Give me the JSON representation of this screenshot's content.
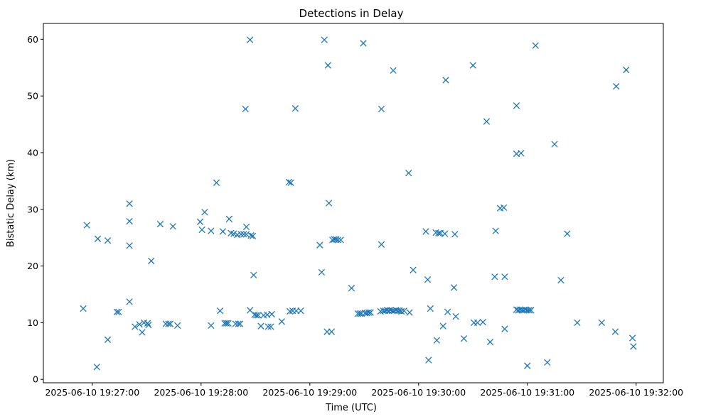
{
  "chart_data": {
    "type": "scatter",
    "title": "Detections in Delay",
    "xlabel": "Time (UTC)",
    "ylabel": "Bistatic Delay (km)",
    "marker": "x",
    "color": "#1f77b4",
    "x_unit": "seconds since 2025-06-10 19:27:00",
    "xlim": [
      -27,
      315
    ],
    "ylim": [
      -0.6,
      62.8
    ],
    "x_ticks": [
      {
        "value": 0,
        "label": "2025-06-10 19:27:00"
      },
      {
        "value": 60,
        "label": "2025-06-10 19:28:00"
      },
      {
        "value": 120,
        "label": "2025-06-10 19:29:00"
      },
      {
        "value": 180,
        "label": "2025-06-10 19:30:00"
      },
      {
        "value": 240,
        "label": "2025-06-10 19:31:00"
      },
      {
        "value": 300,
        "label": "2025-06-10 19:32:00"
      }
    ],
    "y_ticks": [
      {
        "value": 0,
        "label": "0"
      },
      {
        "value": 10,
        "label": "10"
      },
      {
        "value": 20,
        "label": "20"
      },
      {
        "value": 30,
        "label": "30"
      },
      {
        "value": 40,
        "label": "40"
      },
      {
        "value": 50,
        "label": "50"
      },
      {
        "value": 60,
        "label": "60"
      }
    ],
    "points": [
      {
        "x": -5,
        "y": 12.5
      },
      {
        "x": -3,
        "y": 27.2
      },
      {
        "x": 2.5,
        "y": 2.2
      },
      {
        "x": 3,
        "y": 24.8
      },
      {
        "x": 8.5,
        "y": 24.5
      },
      {
        "x": 8.5,
        "y": 7.0
      },
      {
        "x": 13.5,
        "y": 11.9
      },
      {
        "x": 14.5,
        "y": 11.9
      },
      {
        "x": 20.5,
        "y": 31.0
      },
      {
        "x": 20.5,
        "y": 27.9
      },
      {
        "x": 20.5,
        "y": 23.6
      },
      {
        "x": 20.5,
        "y": 13.7
      },
      {
        "x": 23.5,
        "y": 9.3
      },
      {
        "x": 26,
        "y": 9.7
      },
      {
        "x": 27.5,
        "y": 8.3
      },
      {
        "x": 28.5,
        "y": 10.0
      },
      {
        "x": 30.5,
        "y": 9.9
      },
      {
        "x": 31,
        "y": 9.6
      },
      {
        "x": 32.5,
        "y": 20.9
      },
      {
        "x": 37.5,
        "y": 27.4
      },
      {
        "x": 40.5,
        "y": 9.8
      },
      {
        "x": 42,
        "y": 9.8
      },
      {
        "x": 43,
        "y": 9.8
      },
      {
        "x": 44.5,
        "y": 27.0
      },
      {
        "x": 47,
        "y": 9.5
      },
      {
        "x": 59.5,
        "y": 27.8
      },
      {
        "x": 60.5,
        "y": 26.4
      },
      {
        "x": 62,
        "y": 29.5
      },
      {
        "x": 65.5,
        "y": 26.2
      },
      {
        "x": 65.5,
        "y": 9.5
      },
      {
        "x": 68.5,
        "y": 34.7
      },
      {
        "x": 70.5,
        "y": 12.1
      },
      {
        "x": 72,
        "y": 26.1
      },
      {
        "x": 73,
        "y": 9.9
      },
      {
        "x": 74,
        "y": 9.9
      },
      {
        "x": 75,
        "y": 9.9
      },
      {
        "x": 75.5,
        "y": 28.3
      },
      {
        "x": 76.5,
        "y": 25.8
      },
      {
        "x": 78,
        "y": 25.7
      },
      {
        "x": 79,
        "y": 9.8
      },
      {
        "x": 80,
        "y": 25.5
      },
      {
        "x": 80.5,
        "y": 9.8
      },
      {
        "x": 81.5,
        "y": 9.8
      },
      {
        "x": 82,
        "y": 25.6
      },
      {
        "x": 83.5,
        "y": 25.6
      },
      {
        "x": 84.5,
        "y": 47.7
      },
      {
        "x": 85,
        "y": 26.9
      },
      {
        "x": 85,
        "y": 25.6
      },
      {
        "x": 87,
        "y": 59.9
      },
      {
        "x": 87,
        "y": 12.2
      },
      {
        "x": 87.5,
        "y": 25.4
      },
      {
        "x": 88.5,
        "y": 25.3
      },
      {
        "x": 89,
        "y": 18.4
      },
      {
        "x": 89.5,
        "y": 11.4
      },
      {
        "x": 90.5,
        "y": 11.3
      },
      {
        "x": 91.5,
        "y": 11.3
      },
      {
        "x": 93,
        "y": 9.4
      },
      {
        "x": 94.5,
        "y": 11.3
      },
      {
        "x": 96.5,
        "y": 11.4
      },
      {
        "x": 97,
        "y": 9.3
      },
      {
        "x": 98.5,
        "y": 9.3
      },
      {
        "x": 99,
        "y": 11.5
      },
      {
        "x": 104.5,
        "y": 10.2
      },
      {
        "x": 108.5,
        "y": 34.8
      },
      {
        "x": 109.5,
        "y": 34.7
      },
      {
        "x": 109,
        "y": 12.0
      },
      {
        "x": 110.5,
        "y": 12.1
      },
      {
        "x": 112,
        "y": 47.8
      },
      {
        "x": 112.5,
        "y": 12.1
      },
      {
        "x": 115,
        "y": 12.1
      },
      {
        "x": 125.5,
        "y": 23.7
      },
      {
        "x": 126.5,
        "y": 18.9
      },
      {
        "x": 128,
        "y": 59.9
      },
      {
        "x": 129.5,
        "y": 8.4
      },
      {
        "x": 130,
        "y": 55.4
      },
      {
        "x": 130.5,
        "y": 31.1
      },
      {
        "x": 132,
        "y": 8.4
      },
      {
        "x": 132.5,
        "y": 24.6
      },
      {
        "x": 133.5,
        "y": 24.7
      },
      {
        "x": 134.5,
        "y": 24.7
      },
      {
        "x": 135.5,
        "y": 24.6
      },
      {
        "x": 137,
        "y": 24.6
      },
      {
        "x": 143,
        "y": 16.1
      },
      {
        "x": 146.5,
        "y": 11.6
      },
      {
        "x": 147.5,
        "y": 11.6
      },
      {
        "x": 148.5,
        "y": 11.6
      },
      {
        "x": 149.5,
        "y": 59.3
      },
      {
        "x": 150.5,
        "y": 11.7
      },
      {
        "x": 151.5,
        "y": 11.7
      },
      {
        "x": 152.5,
        "y": 11.8
      },
      {
        "x": 153.5,
        "y": 11.8
      },
      {
        "x": 159.5,
        "y": 47.7
      },
      {
        "x": 159.5,
        "y": 23.8
      },
      {
        "x": 159,
        "y": 12.0
      },
      {
        "x": 160.5,
        "y": 12.1
      },
      {
        "x": 161.5,
        "y": 12.1
      },
      {
        "x": 162.5,
        "y": 12.2
      },
      {
        "x": 163.5,
        "y": 12.1
      },
      {
        "x": 164.5,
        "y": 12.2
      },
      {
        "x": 165.5,
        "y": 12.1
      },
      {
        "x": 166,
        "y": 54.5
      },
      {
        "x": 166.5,
        "y": 12.1
      },
      {
        "x": 167.5,
        "y": 12.2
      },
      {
        "x": 168.5,
        "y": 12.1
      },
      {
        "x": 169.5,
        "y": 12.1
      },
      {
        "x": 170.5,
        "y": 12.0
      },
      {
        "x": 172,
        "y": 12.1
      },
      {
        "x": 174.5,
        "y": 36.4
      },
      {
        "x": 175,
        "y": 11.8
      },
      {
        "x": 177,
        "y": 19.3
      },
      {
        "x": 184,
        "y": 26.1
      },
      {
        "x": 185,
        "y": 17.6
      },
      {
        "x": 185.5,
        "y": 3.4
      },
      {
        "x": 186.5,
        "y": 12.5
      },
      {
        "x": 189.5,
        "y": 25.9
      },
      {
        "x": 190,
        "y": 6.9
      },
      {
        "x": 191,
        "y": 25.8
      },
      {
        "x": 192,
        "y": 25.8
      },
      {
        "x": 193.5,
        "y": 9.4
      },
      {
        "x": 194.5,
        "y": 25.7
      },
      {
        "x": 195,
        "y": 52.8
      },
      {
        "x": 196,
        "y": 11.9
      },
      {
        "x": 199.5,
        "y": 16.2
      },
      {
        "x": 200,
        "y": 25.6
      },
      {
        "x": 200.5,
        "y": 11.1
      },
      {
        "x": 205,
        "y": 7.2
      },
      {
        "x": 210,
        "y": 55.4
      },
      {
        "x": 210.5,
        "y": 10.0
      },
      {
        "x": 212.5,
        "y": 10.0
      },
      {
        "x": 215.5,
        "y": 10.1
      },
      {
        "x": 217.5,
        "y": 45.5
      },
      {
        "x": 219.5,
        "y": 6.6
      },
      {
        "x": 222,
        "y": 18.1
      },
      {
        "x": 222.5,
        "y": 26.2
      },
      {
        "x": 225,
        "y": 30.2
      },
      {
        "x": 227,
        "y": 30.3
      },
      {
        "x": 227.5,
        "y": 18.1
      },
      {
        "x": 227.5,
        "y": 8.9
      },
      {
        "x": 234,
        "y": 48.3
      },
      {
        "x": 234,
        "y": 39.8
      },
      {
        "x": 234,
        "y": 12.3
      },
      {
        "x": 235,
        "y": 12.2
      },
      {
        "x": 236,
        "y": 12.3
      },
      {
        "x": 236.5,
        "y": 39.9
      },
      {
        "x": 237,
        "y": 12.2
      },
      {
        "x": 238,
        "y": 12.2
      },
      {
        "x": 239,
        "y": 12.3
      },
      {
        "x": 240,
        "y": 2.4
      },
      {
        "x": 240,
        "y": 12.2
      },
      {
        "x": 241,
        "y": 12.2
      },
      {
        "x": 242,
        "y": 12.2
      },
      {
        "x": 244.5,
        "y": 58.9
      },
      {
        "x": 251,
        "y": 3.0
      },
      {
        "x": 255,
        "y": 41.5
      },
      {
        "x": 258.5,
        "y": 17.5
      },
      {
        "x": 262,
        "y": 25.7
      },
      {
        "x": 267.5,
        "y": 10.0
      },
      {
        "x": 281,
        "y": 10.0
      },
      {
        "x": 288.5,
        "y": 8.4
      },
      {
        "x": 289,
        "y": 51.7
      },
      {
        "x": 294.5,
        "y": 54.6
      },
      {
        "x": 298,
        "y": 7.3
      },
      {
        "x": 298.5,
        "y": 5.8
      }
    ]
  }
}
